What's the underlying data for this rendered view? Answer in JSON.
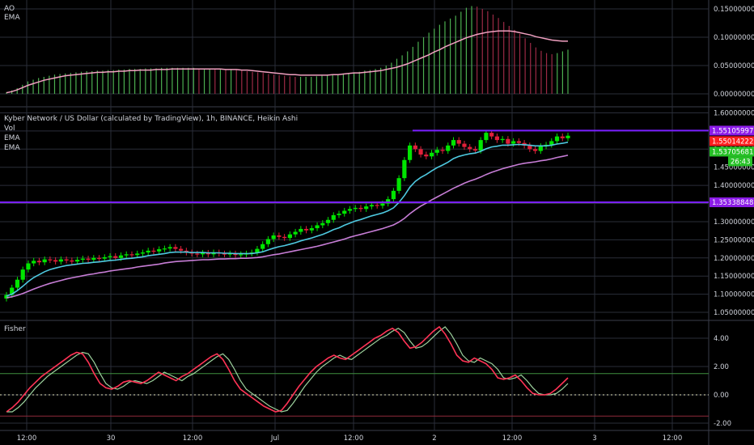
{
  "ao_pane": {
    "title": "AO",
    "ema_label": "EMA"
  },
  "price_pane": {
    "title": "Kyber Network / US Dollar (calculated by TradingView), 1h, BINANCE, Heikin Ashi",
    "vol_label": "Vol",
    "ema1_label": "EMA",
    "ema2_label": "EMA"
  },
  "fisher_pane": {
    "title": "Fisher"
  },
  "x_axis": {
    "labels": [
      "12:00",
      "30",
      "12:00",
      "Jul",
      "12:00",
      "2",
      "12:00",
      "3",
      "12:00"
    ]
  },
  "price_tags": [
    {
      "text": "1.55105997",
      "color": "#8c1ce8"
    },
    {
      "text": "1.55014222",
      "color": "#ff1f1f"
    },
    {
      "text": "1.53705681",
      "color": "#26c026"
    },
    {
      "text": "26:43",
      "color": "#26c026"
    },
    {
      "text": "1.35338848",
      "color": "#8c1ce8"
    }
  ],
  "colors": {
    "up": "#00e600",
    "down": "#e0203a",
    "ema_fast": "#4ec9e0",
    "ema_slow": "#c77dd6",
    "level_line": "#7a1fff",
    "fisher_main": "#ff3355",
    "fisher_trigger": "#9ed39e",
    "grid": "#2a2e39",
    "ao_up": "#4caf50",
    "ao_down": "#9c2a45",
    "ao_ema": "#f0a0c0"
  },
  "chart_data": [
    {
      "type": "bar",
      "title": "AO",
      "ylim": [
        -0.02,
        0.16
      ],
      "yticks": [
        "0.15000000",
        "0.10000000",
        "0.05000000",
        "0.00000000"
      ],
      "ytick_values": [
        0.15,
        0.1,
        0.05,
        0.0
      ],
      "values": [
        0.003,
        0.006,
        0.01,
        0.016,
        0.022,
        0.025,
        0.028,
        0.03,
        0.032,
        0.034,
        0.035,
        0.036,
        0.037,
        0.038,
        0.039,
        0.04,
        0.04,
        0.041,
        0.041,
        0.042,
        0.042,
        0.043,
        0.043,
        0.044,
        0.044,
        0.044,
        0.045,
        0.045,
        0.045,
        0.046,
        0.046,
        0.046,
        0.046,
        0.046,
        0.046,
        0.046,
        0.045,
        0.045,
        0.045,
        0.044,
        0.044,
        0.043,
        0.043,
        0.042,
        0.041,
        0.04,
        0.039,
        0.038,
        0.037,
        0.035,
        0.034,
        0.033,
        0.032,
        0.031,
        0.03,
        0.03,
        0.03,
        0.03,
        0.031,
        0.032,
        0.033,
        0.034,
        0.035,
        0.036,
        0.037,
        0.038,
        0.039,
        0.041,
        0.042,
        0.044,
        0.046,
        0.05,
        0.055,
        0.062,
        0.068,
        0.075,
        0.083,
        0.092,
        0.1,
        0.108,
        0.115,
        0.122,
        0.128,
        0.133,
        0.138,
        0.145,
        0.152,
        0.155,
        0.154,
        0.15,
        0.146,
        0.14,
        0.134,
        0.127,
        0.12,
        0.113,
        0.106,
        0.098,
        0.09,
        0.082,
        0.076,
        0.072,
        0.07,
        0.072,
        0.075,
        0.078
      ],
      "ema": [
        0.002,
        0.004,
        0.007,
        0.011,
        0.015,
        0.018,
        0.021,
        0.024,
        0.026,
        0.028,
        0.03,
        0.032,
        0.033,
        0.034,
        0.035,
        0.036,
        0.037,
        0.038,
        0.038,
        0.039,
        0.039,
        0.04,
        0.04,
        0.041,
        0.041,
        0.042,
        0.042,
        0.042,
        0.043,
        0.043,
        0.043,
        0.044,
        0.044,
        0.044,
        0.044,
        0.044,
        0.044,
        0.044,
        0.044,
        0.044,
        0.044,
        0.043,
        0.043,
        0.043,
        0.042,
        0.042,
        0.041,
        0.04,
        0.039,
        0.038,
        0.037,
        0.036,
        0.035,
        0.034,
        0.034,
        0.033,
        0.033,
        0.033,
        0.033,
        0.033,
        0.033,
        0.034,
        0.034,
        0.035,
        0.036,
        0.037,
        0.037,
        0.038,
        0.039,
        0.04,
        0.041,
        0.043,
        0.045,
        0.047,
        0.05,
        0.053,
        0.057,
        0.061,
        0.065,
        0.069,
        0.074,
        0.078,
        0.083,
        0.087,
        0.091,
        0.095,
        0.099,
        0.102,
        0.105,
        0.107,
        0.109,
        0.11,
        0.111,
        0.111,
        0.111,
        0.11,
        0.108,
        0.106,
        0.104,
        0.101,
        0.099,
        0.097,
        0.095,
        0.094,
        0.093,
        0.093
      ]
    },
    {
      "type": "candlestick",
      "title": "Kyber Network / US Dollar (calculated by TradingView), 1h, BINANCE, Heikin Ashi",
      "ylim": [
        1.03,
        1.61
      ],
      "yticks": [
        "1.60000000",
        "1.55000000",
        "1.50000000",
        "1.45000000",
        "1.40000000",
        "1.35000000",
        "1.30000000",
        "1.25000000",
        "1.20000000",
        "1.15000000",
        "1.10000000",
        "1.05000000"
      ],
      "ytick_values": [
        1.6,
        1.55,
        1.5,
        1.45,
        1.4,
        1.35,
        1.3,
        1.25,
        1.2,
        1.15,
        1.1,
        1.05
      ],
      "close": [
        1.098,
        1.118,
        1.14,
        1.168,
        1.185,
        1.192,
        1.188,
        1.196,
        1.194,
        1.19,
        1.196,
        1.193,
        1.19,
        1.195,
        1.198,
        1.195,
        1.2,
        1.198,
        1.202,
        1.205,
        1.2,
        1.207,
        1.21,
        1.208,
        1.212,
        1.215,
        1.22,
        1.218,
        1.224,
        1.226,
        1.23,
        1.225,
        1.22,
        1.215,
        1.212,
        1.21,
        1.214,
        1.21,
        1.215,
        1.212,
        1.21,
        1.212,
        1.208,
        1.21,
        1.212,
        1.215,
        1.225,
        1.238,
        1.252,
        1.262,
        1.258,
        1.255,
        1.265,
        1.272,
        1.28,
        1.276,
        1.282,
        1.29,
        1.296,
        1.305,
        1.318,
        1.322,
        1.33,
        1.335,
        1.338,
        1.335,
        1.342,
        1.346,
        1.344,
        1.35,
        1.362,
        1.385,
        1.42,
        1.47,
        1.51,
        1.5,
        1.485,
        1.48,
        1.49,
        1.498,
        1.495,
        1.51,
        1.525,
        1.515,
        1.506,
        1.5,
        1.496,
        1.525,
        1.545,
        1.535,
        1.525,
        1.528,
        1.515,
        1.522,
        1.517,
        1.51,
        1.5,
        1.495,
        1.508,
        1.512,
        1.522,
        1.535,
        1.53,
        1.537
      ],
      "ema_fast": [
        1.095,
        1.1,
        1.11,
        1.122,
        1.135,
        1.146,
        1.154,
        1.162,
        1.168,
        1.172,
        1.176,
        1.179,
        1.181,
        1.183,
        1.185,
        1.186,
        1.188,
        1.189,
        1.191,
        1.193,
        1.194,
        1.196,
        1.198,
        1.199,
        1.201,
        1.203,
        1.206,
        1.208,
        1.21,
        1.212,
        1.215,
        1.216,
        1.216,
        1.216,
        1.215,
        1.215,
        1.215,
        1.214,
        1.214,
        1.214,
        1.213,
        1.213,
        1.212,
        1.212,
        1.212,
        1.212,
        1.214,
        1.217,
        1.222,
        1.227,
        1.231,
        1.234,
        1.238,
        1.242,
        1.247,
        1.251,
        1.255,
        1.26,
        1.265,
        1.271,
        1.278,
        1.283,
        1.29,
        1.296,
        1.302,
        1.306,
        1.311,
        1.316,
        1.32,
        1.324,
        1.33,
        1.338,
        1.353,
        1.372,
        1.395,
        1.411,
        1.422,
        1.43,
        1.44,
        1.449,
        1.456,
        1.464,
        1.474,
        1.48,
        1.484,
        1.487,
        1.489,
        1.494,
        1.501,
        1.506,
        1.508,
        1.511,
        1.511,
        1.512,
        1.513,
        1.512,
        1.511,
        1.509,
        1.509,
        1.509,
        1.511,
        1.514,
        1.516,
        1.519
      ],
      "ema_slow": [
        1.09,
        1.093,
        1.097,
        1.102,
        1.108,
        1.114,
        1.12,
        1.125,
        1.13,
        1.134,
        1.138,
        1.142,
        1.145,
        1.148,
        1.151,
        1.154,
        1.156,
        1.159,
        1.161,
        1.164,
        1.166,
        1.168,
        1.17,
        1.172,
        1.175,
        1.177,
        1.179,
        1.181,
        1.183,
        1.186,
        1.188,
        1.19,
        1.191,
        1.192,
        1.193,
        1.194,
        1.195,
        1.195,
        1.196,
        1.197,
        1.197,
        1.198,
        1.198,
        1.199,
        1.199,
        1.2,
        1.201,
        1.203,
        1.206,
        1.209,
        1.211,
        1.214,
        1.217,
        1.22,
        1.223,
        1.226,
        1.229,
        1.232,
        1.236,
        1.24,
        1.244,
        1.248,
        1.252,
        1.257,
        1.261,
        1.265,
        1.269,
        1.273,
        1.277,
        1.281,
        1.286,
        1.291,
        1.299,
        1.309,
        1.322,
        1.333,
        1.343,
        1.351,
        1.36,
        1.368,
        1.376,
        1.384,
        1.392,
        1.399,
        1.406,
        1.412,
        1.417,
        1.423,
        1.43,
        1.436,
        1.441,
        1.446,
        1.45,
        1.454,
        1.458,
        1.461,
        1.463,
        1.465,
        1.468,
        1.47,
        1.473,
        1.477,
        1.48,
        1.483
      ],
      "levels": [
        1.55105997,
        1.35338848
      ]
    },
    {
      "type": "line",
      "title": "Fisher",
      "ylim": [
        -2.4,
        5.2
      ],
      "yticks": [
        "4.00",
        "2.00",
        "0.00",
        "-2.00"
      ],
      "ytick_values": [
        4,
        2,
        0,
        -2
      ],
      "hlines": [
        1.5,
        0,
        -1.5
      ],
      "fisher": [
        -1.2,
        -0.9,
        -0.5,
        0.0,
        0.5,
        0.9,
        1.3,
        1.6,
        1.9,
        2.2,
        2.5,
        2.8,
        3.0,
        2.9,
        2.3,
        1.5,
        0.8,
        0.5,
        0.4,
        0.6,
        0.9,
        1.0,
        0.9,
        0.8,
        1.0,
        1.3,
        1.6,
        1.4,
        1.2,
        1.0,
        1.3,
        1.5,
        1.8,
        2.1,
        2.4,
        2.7,
        2.9,
        2.5,
        1.8,
        1.0,
        0.4,
        0.1,
        -0.2,
        -0.5,
        -0.8,
        -1.0,
        -1.2,
        -1.1,
        -0.6,
        0.0,
        0.6,
        1.1,
        1.6,
        2.0,
        2.3,
        2.6,
        2.8,
        2.6,
        2.5,
        2.8,
        3.1,
        3.4,
        3.7,
        4.0,
        4.2,
        4.5,
        4.7,
        4.4,
        3.8,
        3.3,
        3.4,
        3.7,
        4.1,
        4.5,
        4.8,
        4.3,
        3.6,
        2.8,
        2.4,
        2.3,
        2.6,
        2.4,
        2.2,
        1.8,
        1.2,
        1.1,
        1.2,
        1.4,
        1.0,
        0.5,
        0.1,
        0.0,
        0.0,
        0.1,
        0.4,
        0.8,
        1.2
      ]
    }
  ]
}
